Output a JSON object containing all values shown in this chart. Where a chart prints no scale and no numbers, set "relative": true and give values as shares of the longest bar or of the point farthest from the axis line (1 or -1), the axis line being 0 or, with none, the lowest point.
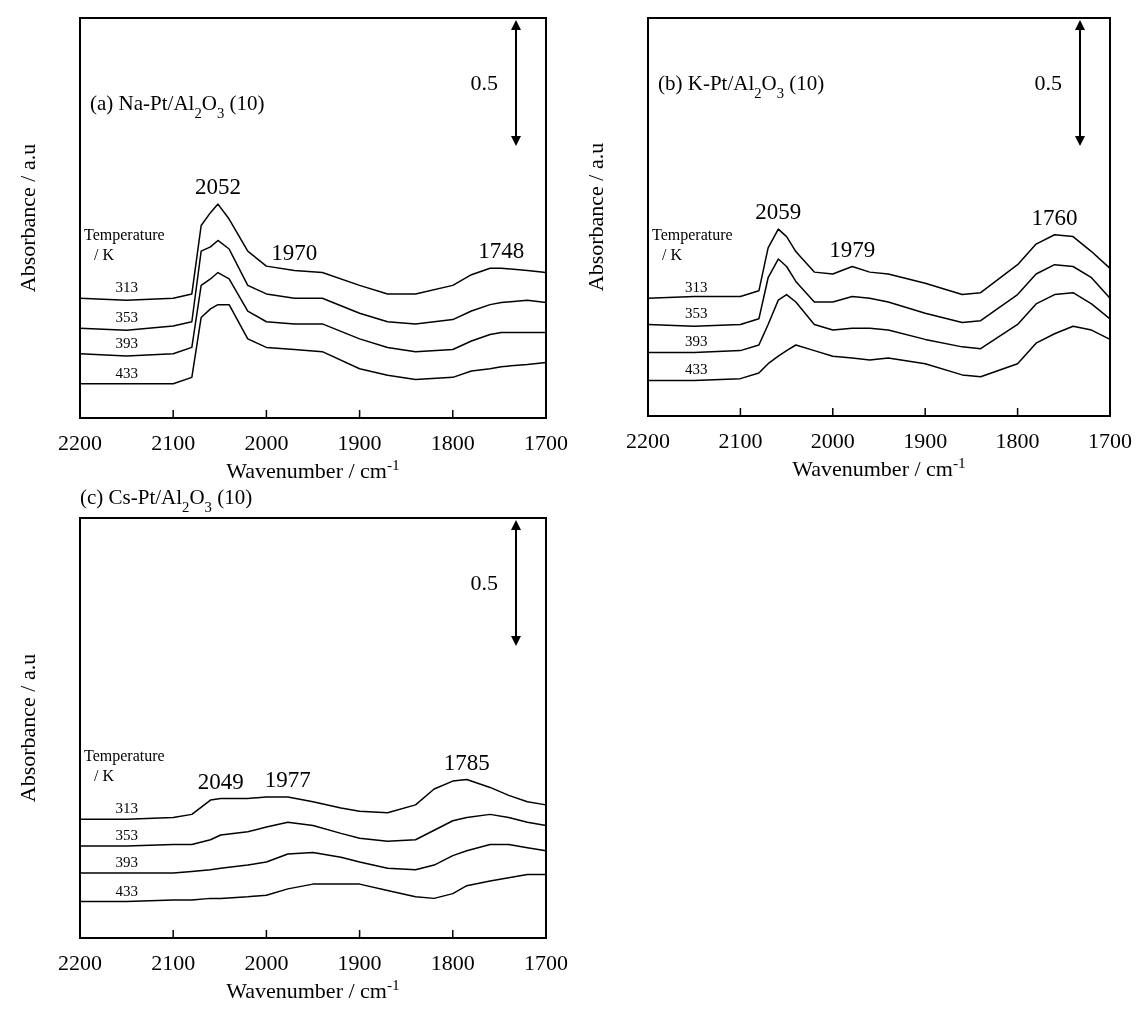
{
  "chart_data": [
    {
      "type": "line",
      "title": "(a) Na-Pt/Al$_{2}$O$_{3}$ (10)",
      "xlabel": "Wavenumber / cm$^{-1}$",
      "ylabel": "Absorbance / a.u",
      "legend_title": "Temperature / K",
      "relative": true,
      "grid": false,
      "marker": "none",
      "line_style": "solid",
      "xlim": [
        2200,
        1700
      ],
      "xticks": [
        2200,
        2100,
        2000,
        1900,
        1800,
        1700
      ],
      "x": [
        2200,
        2150,
        2100,
        2080,
        2070,
        2060,
        2052,
        2040,
        2020,
        2000,
        1970,
        1940,
        1900,
        1870,
        1840,
        1800,
        1780,
        1760,
        1748,
        1720,
        1700
      ],
      "series": [
        {
          "name": "313",
          "color": "#000000",
          "values": [
            0.56,
            0.55,
            0.56,
            0.58,
            0.9,
            0.96,
            1.0,
            0.93,
            0.78,
            0.71,
            0.69,
            0.68,
            0.62,
            0.58,
            0.58,
            0.62,
            0.67,
            0.7,
            0.7,
            0.69,
            0.68
          ]
        },
        {
          "name": "353",
          "color": "#000000",
          "values": [
            0.42,
            0.41,
            0.43,
            0.45,
            0.78,
            0.8,
            0.83,
            0.79,
            0.62,
            0.58,
            0.56,
            0.56,
            0.49,
            0.45,
            0.44,
            0.46,
            0.5,
            0.53,
            0.54,
            0.55,
            0.54
          ]
        },
        {
          "name": "393",
          "color": "#000000",
          "values": [
            0.3,
            0.29,
            0.3,
            0.33,
            0.62,
            0.65,
            0.68,
            0.65,
            0.5,
            0.45,
            0.44,
            0.44,
            0.37,
            0.33,
            0.31,
            0.32,
            0.36,
            0.39,
            0.4,
            0.4,
            0.4
          ]
        },
        {
          "name": "433",
          "color": "#000000",
          "values": [
            0.16,
            0.16,
            0.16,
            0.19,
            0.47,
            0.51,
            0.53,
            0.53,
            0.37,
            0.33,
            0.32,
            0.31,
            0.23,
            0.2,
            0.18,
            0.19,
            0.22,
            0.23,
            0.24,
            0.25,
            0.26
          ]
        }
      ],
      "annotations": [
        {
          "text": "2052",
          "x": 2052,
          "y": 1.0
        },
        {
          "text": "1970",
          "x": 1970,
          "y": 0.69
        },
        {
          "text": "1748",
          "x": 1748,
          "y": 0.7
        },
        "0.5"
      ]
    },
    {
      "type": "line",
      "title": "(b) K-Pt/Al$_{2}$O$_{3}$ (10)",
      "xlabel": "Wavenumber / cm$^{-1}$",
      "ylabel": "Absorbance / a.u",
      "legend_title": "Temperature / K",
      "relative": true,
      "grid": false,
      "marker": "none",
      "line_style": "solid",
      "xlim": [
        2200,
        1700
      ],
      "xticks": [
        2200,
        2100,
        2000,
        1900,
        1800,
        1700
      ],
      "x": [
        2200,
        2150,
        2100,
        2080,
        2070,
        2059,
        2050,
        2040,
        2020,
        2000,
        1979,
        1960,
        1940,
        1900,
        1860,
        1840,
        1800,
        1780,
        1760,
        1740,
        1720,
        1700
      ],
      "series": [
        {
          "name": "313",
          "color": "#000000",
          "values": [
            0.63,
            0.64,
            0.64,
            0.67,
            0.9,
            1.0,
            0.96,
            0.88,
            0.77,
            0.76,
            0.8,
            0.77,
            0.76,
            0.71,
            0.65,
            0.66,
            0.81,
            0.92,
            0.97,
            0.96,
            0.88,
            0.79
          ]
        },
        {
          "name": "353",
          "color": "#000000",
          "values": [
            0.49,
            0.48,
            0.49,
            0.52,
            0.74,
            0.84,
            0.8,
            0.72,
            0.61,
            0.61,
            0.64,
            0.63,
            0.61,
            0.55,
            0.5,
            0.51,
            0.65,
            0.76,
            0.81,
            0.8,
            0.74,
            0.63
          ]
        },
        {
          "name": "393",
          "color": "#000000",
          "values": [
            0.34,
            0.34,
            0.35,
            0.38,
            0.49,
            0.62,
            0.65,
            0.61,
            0.49,
            0.46,
            0.47,
            0.47,
            0.46,
            0.41,
            0.37,
            0.36,
            0.49,
            0.6,
            0.65,
            0.66,
            0.6,
            0.52
          ]
        },
        {
          "name": "433",
          "color": "#000000",
          "values": [
            0.19,
            0.19,
            0.2,
            0.23,
            0.28,
            0.32,
            0.35,
            0.38,
            0.35,
            0.32,
            0.31,
            0.3,
            0.31,
            0.28,
            0.22,
            0.21,
            0.28,
            0.39,
            0.44,
            0.48,
            0.46,
            0.41
          ]
        }
      ],
      "annotations": [
        {
          "text": "2059",
          "x": 2059,
          "y": 1.0
        },
        {
          "text": "1979",
          "x": 1979,
          "y": 0.8
        },
        {
          "text": "1760",
          "x": 1760,
          "y": 0.97
        },
        "0.5"
      ]
    },
    {
      "type": "line",
      "title": "(c) Cs-Pt/Al$_{2}$O$_{3}$ (10)",
      "xlabel": "Wavenumber / cm$^{-1}$",
      "ylabel": "Absorbance / a.u",
      "legend_title": "Temperature / K",
      "relative": true,
      "grid": false,
      "marker": "none",
      "line_style": "solid",
      "xlim": [
        2200,
        1700
      ],
      "xticks": [
        2200,
        2100,
        2000,
        1900,
        1800,
        1700
      ],
      "x": [
        2200,
        2150,
        2100,
        2080,
        2060,
        2049,
        2020,
        2000,
        1977,
        1950,
        1920,
        1900,
        1870,
        1840,
        1820,
        1800,
        1785,
        1760,
        1740,
        1720,
        1700
      ],
      "series": [
        {
          "name": "313",
          "color": "#000000",
          "values": [
            0.75,
            0.75,
            0.76,
            0.78,
            0.87,
            0.88,
            0.88,
            0.89,
            0.89,
            0.86,
            0.82,
            0.8,
            0.79,
            0.84,
            0.94,
            0.99,
            1.0,
            0.95,
            0.9,
            0.86,
            0.84
          ]
        },
        {
          "name": "353",
          "color": "#000000",
          "values": [
            0.58,
            0.58,
            0.59,
            0.59,
            0.62,
            0.65,
            0.67,
            0.7,
            0.73,
            0.71,
            0.66,
            0.63,
            0.61,
            0.62,
            0.68,
            0.74,
            0.76,
            0.78,
            0.76,
            0.73,
            0.71
          ]
        },
        {
          "name": "393",
          "color": "#000000",
          "values": [
            0.41,
            0.41,
            0.41,
            0.42,
            0.43,
            0.44,
            0.46,
            0.48,
            0.53,
            0.54,
            0.51,
            0.48,
            0.44,
            0.43,
            0.46,
            0.52,
            0.55,
            0.59,
            0.59,
            0.57,
            0.55
          ]
        },
        {
          "name": "433",
          "color": "#000000",
          "values": [
            0.23,
            0.23,
            0.24,
            0.24,
            0.25,
            0.25,
            0.26,
            0.27,
            0.31,
            0.34,
            0.34,
            0.34,
            0.3,
            0.26,
            0.25,
            0.28,
            0.33,
            0.36,
            0.38,
            0.4,
            0.4
          ]
        }
      ],
      "annotations": [
        {
          "text": "2049",
          "x": 2049,
          "y": 0.88
        },
        {
          "text": "1977",
          "x": 1977,
          "y": 0.89
        },
        {
          "text": "1785",
          "x": 1785,
          "y": 1.0
        },
        "0.5"
      ]
    }
  ]
}
